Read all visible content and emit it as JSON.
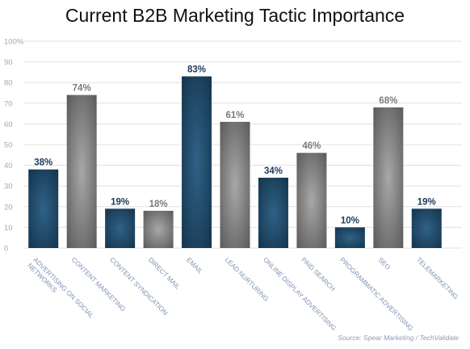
{
  "chart_data": {
    "type": "bar",
    "title": "Current B2B Marketing Tactic Importance",
    "categories": [
      "ADVERTISING ON SOCIAL NETWORKS",
      "CONTENT MARKETING",
      "CONTENT SYNDICATION",
      "DIRECT MAIL",
      "EMAIL",
      "LEAD NURTURING",
      "ONLINE DISPLAY ADVERTISING",
      "PAID SEARCH",
      "PROGRAMMATIC ADVERTISING",
      "SEO",
      "TELEMARKETING"
    ],
    "category_label_lines": [
      [
        "ADVERTISING ON SOCIAL",
        "NETWORKS"
      ],
      [
        "CONTENT MARKETING"
      ],
      [
        "CONTENT SYNDICATION"
      ],
      [
        "DIRECT MAIL"
      ],
      [
        "EMAIL"
      ],
      [
        "LEAD NURTURING"
      ],
      [
        "ONLINE DISPLAY ADVERTISING"
      ],
      [
        "PAID SEARCH"
      ],
      [
        "PROGRAMMATIC ADVERTISING"
      ],
      [
        "SEO"
      ],
      [
        "TELEMARKETING"
      ]
    ],
    "values": [
      38,
      74,
      19,
      18,
      83,
      61,
      34,
      46,
      10,
      68,
      19
    ],
    "value_labels": [
      "38%",
      "74%",
      "19%",
      "18%",
      "83%",
      "61%",
      "34%",
      "46%",
      "10%",
      "68%",
      "19%"
    ],
    "bar_colors": [
      "blue",
      "gray",
      "blue",
      "gray",
      "blue",
      "gray",
      "blue",
      "gray",
      "blue",
      "gray",
      "blue"
    ],
    "yticks": [
      0,
      10,
      20,
      30,
      40,
      50,
      60,
      70,
      80,
      90,
      100
    ],
    "ytick_labels": [
      "0",
      "10",
      "20",
      "30",
      "40",
      "50",
      "60",
      "70",
      "80",
      "90",
      "100%"
    ],
    "ylim": [
      0,
      100
    ],
    "grid": true,
    "legend": "none",
    "source": "Source: Spear Marketing / TechValidate"
  },
  "colors": {
    "blue_bar": "#1d4968",
    "blue_bar_light": "#2f6286",
    "gray_bar": "#9a9a9a",
    "gray_bar_dark": "#5f5f5f",
    "blue_label": "#1d3a5c",
    "gray_label": "#7a7a7a",
    "axis_text": "#a8a8a8",
    "grid": "#e1e1e1",
    "category_text": "#7f93b4"
  }
}
